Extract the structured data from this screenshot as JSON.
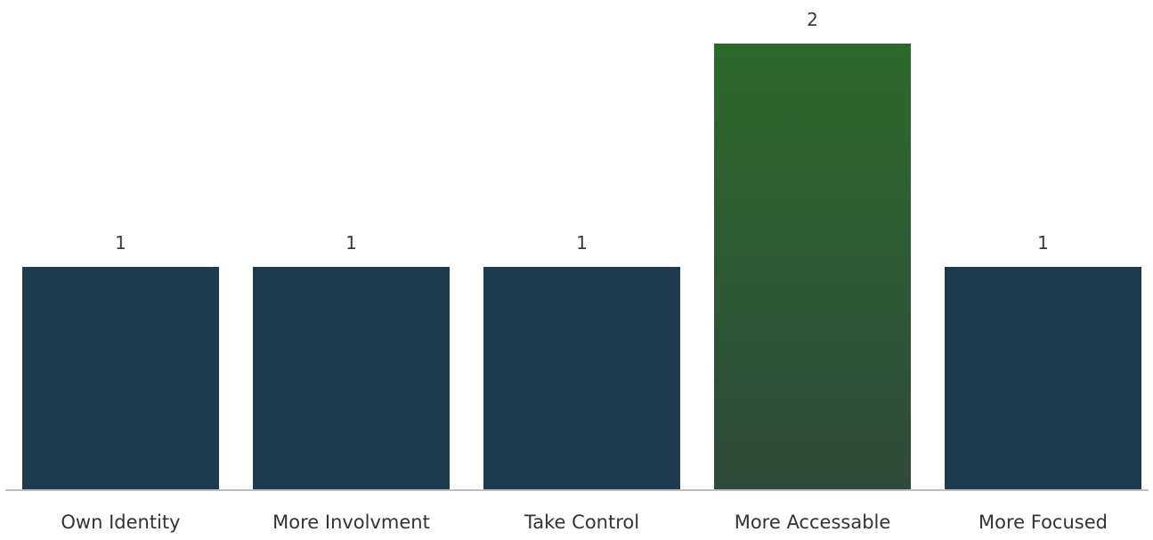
{
  "chart_data": {
    "type": "bar",
    "categories": [
      "Own Identity",
      "More Involvment",
      "Take Control",
      "More Accessable",
      "More Focused"
    ],
    "values": [
      1,
      1,
      1,
      2,
      1
    ],
    "data_labels": [
      "1",
      "1",
      "1",
      "2",
      "1"
    ],
    "ylim": [
      0,
      2
    ],
    "grid": false,
    "legend": "none",
    "colors": {
      "default_bar": "#1d3a4f",
      "highlight_bar_top": "#2c6a2c",
      "highlight_bar_bottom": "#2f4a3a",
      "baseline": "#bdbdbd"
    },
    "highlight_index": 3
  }
}
